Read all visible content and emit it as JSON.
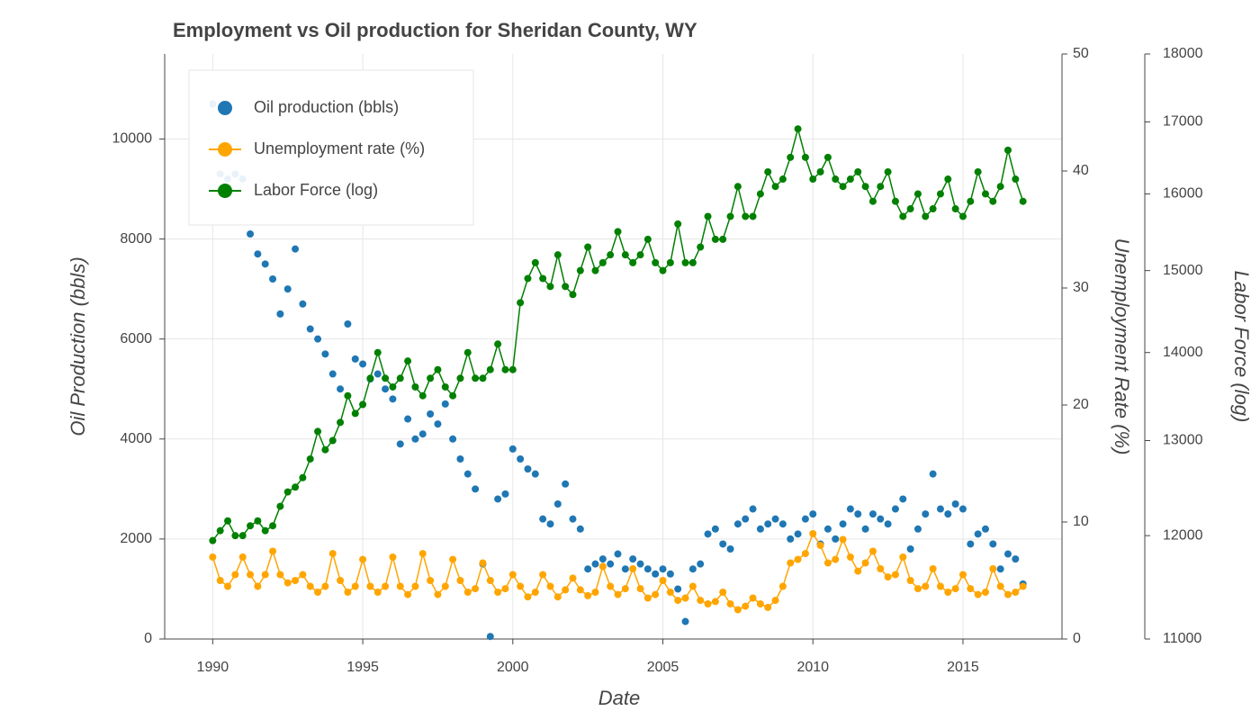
{
  "chart_data": {
    "type": "line",
    "title": "Employment vs Oil production for Sheridan County, WY",
    "x_label": "Date",
    "y_label": "Oil Production (bbls)",
    "y2_label": "Unemployment Rate (%)",
    "y3_label": "Labor Force (log)",
    "xlim": [
      1988.4,
      2018.3
    ],
    "xticks": [
      1990,
      1995,
      2000,
      2005,
      2010,
      2015
    ],
    "ylim": [
      0,
      11700
    ],
    "yticks": [
      0,
      2000,
      4000,
      6000,
      8000,
      10000
    ],
    "y2lim": [
      0,
      50
    ],
    "y2ticks": [
      0,
      10,
      20,
      30,
      40,
      50
    ],
    "y3lim": [
      11000,
      18000
    ],
    "y3ticks": [
      11000,
      12000,
      13000,
      14000,
      15000,
      16000,
      17000,
      18000
    ],
    "y3scale": "log",
    "grid": true,
    "legend": "top-left",
    "x": [
      1990,
      1990.25,
      1990.5,
      1990.75,
      1991,
      1991.25,
      1991.5,
      1991.75,
      1992,
      1992.25,
      1992.5,
      1992.75,
      1993,
      1993.25,
      1993.5,
      1993.75,
      1994,
      1994.25,
      1994.5,
      1994.75,
      1995,
      1995.25,
      1995.5,
      1995.75,
      1996,
      1996.25,
      1996.5,
      1996.75,
      1997,
      1997.25,
      1997.5,
      1997.75,
      1998,
      1998.25,
      1998.5,
      1998.75,
      1999,
      1999.25,
      1999.5,
      1999.75,
      2000,
      2000.25,
      2000.5,
      2000.75,
      2001,
      2001.25,
      2001.5,
      2001.75,
      2002,
      2002.25,
      2002.5,
      2002.75,
      2003,
      2003.25,
      2003.5,
      2003.75,
      2004,
      2004.25,
      2004.5,
      2004.75,
      2005,
      2005.25,
      2005.5,
      2005.75,
      2006,
      2006.25,
      2006.5,
      2006.75,
      2007,
      2007.25,
      2007.5,
      2007.75,
      2008,
      2008.25,
      2008.5,
      2008.75,
      2009,
      2009.25,
      2009.5,
      2009.75,
      2010,
      2010.25,
      2010.5,
      2010.75,
      2011,
      2011.25,
      2011.5,
      2011.75,
      2012,
      2012.25,
      2012.5,
      2012.75,
      2013,
      2013.25,
      2013.5,
      2013.75,
      2014,
      2014.25,
      2014.5,
      2014.75,
      2015,
      2015.25,
      2015.5,
      2015.75,
      2016,
      2016.25,
      2016.5,
      2016.75,
      2017
    ],
    "series": [
      {
        "name": "Oil production (bbls)",
        "color": "#1f77b4",
        "mode": "markers",
        "axis": "y",
        "values": [
          10700,
          9300,
          9200,
          9300,
          9200,
          8100,
          7700,
          7500,
          7200,
          6500,
          7000,
          7800,
          6700,
          6200,
          6000,
          5700,
          5300,
          5000,
          6300,
          5600,
          5500,
          5200,
          5300,
          5000,
          4800,
          3900,
          4400,
          4000,
          4100,
          4500,
          4300,
          4700,
          4000,
          3600,
          3300,
          3000,
          1500,
          50,
          2800,
          2900,
          3800,
          3600,
          3400,
          3300,
          2400,
          2300,
          2700,
          3100,
          2400,
          2200,
          1400,
          1500,
          1600,
          1500,
          1700,
          1400,
          1600,
          1500,
          1400,
          1300,
          1400,
          1300,
          1000,
          350,
          1400,
          1500,
          2100,
          2200,
          1900,
          1800,
          2300,
          2400,
          2600,
          2200,
          2300,
          2400,
          2300,
          2000,
          2100,
          2400,
          2500,
          1900,
          2200,
          2000,
          2300,
          2600,
          2500,
          2200,
          2500,
          2400,
          2300,
          2600,
          2800,
          1800,
          2200,
          2500,
          3300,
          2600,
          2500,
          2700,
          2600,
          1900,
          2100,
          2200,
          1900,
          1400,
          1700,
          1600,
          1100
        ]
      },
      {
        "name": "Unemployment rate (%)",
        "color": "#ffa500",
        "mode": "lines+markers",
        "axis": "y2",
        "values": [
          7.0,
          5.0,
          4.5,
          5.5,
          7.0,
          5.5,
          4.5,
          5.5,
          7.5,
          5.5,
          4.8,
          5.0,
          5.5,
          4.5,
          4.0,
          4.5,
          7.3,
          5.0,
          4.0,
          4.5,
          6.8,
          4.5,
          4.0,
          4.5,
          7.0,
          4.5,
          3.8,
          4.5,
          7.3,
          5.0,
          3.8,
          4.5,
          6.8,
          5.0,
          4.0,
          4.3,
          6.5,
          5.0,
          4.0,
          4.3,
          5.5,
          4.5,
          3.6,
          4.0,
          5.5,
          4.5,
          3.6,
          4.2,
          5.2,
          4.2,
          3.7,
          4.0,
          6.2,
          4.5,
          3.8,
          4.3,
          6.0,
          4.3,
          3.5,
          3.8,
          5.0,
          4.0,
          3.3,
          3.5,
          4.5,
          3.3,
          3.0,
          3.2,
          4.0,
          3.0,
          2.5,
          2.8,
          3.5,
          3.0,
          2.7,
          3.3,
          4.5,
          6.5,
          6.8,
          7.3,
          9.0,
          8.0,
          6.5,
          6.8,
          8.5,
          7.0,
          5.8,
          6.5,
          7.5,
          6.0,
          5.3,
          5.5,
          7.0,
          5.0,
          4.3,
          4.5,
          6.0,
          4.5,
          4.0,
          4.3,
          5.5,
          4.3,
          3.8,
          4.0,
          6.0,
          4.5,
          3.8,
          4.0,
          4.5
        ]
      },
      {
        "name": "Labor Force (log)",
        "color": "#008000",
        "mode": "lines+markers",
        "axis": "y3",
        "values": [
          11950,
          12050,
          12150,
          12000,
          12000,
          12100,
          12150,
          12050,
          12100,
          12300,
          12450,
          12500,
          12600,
          12800,
          13100,
          12900,
          13000,
          13200,
          13500,
          13300,
          13400,
          13700,
          14000,
          13700,
          13600,
          13700,
          13900,
          13600,
          13500,
          13700,
          13800,
          13600,
          13500,
          13700,
          14000,
          13700,
          13700,
          13800,
          14100,
          13800,
          13800,
          14600,
          14900,
          15100,
          14900,
          14800,
          15200,
          14800,
          14700,
          15000,
          15300,
          15000,
          15100,
          15200,
          15500,
          15200,
          15100,
          15200,
          15400,
          15100,
          15000,
          15100,
          15600,
          15100,
          15100,
          15300,
          15700,
          15400,
          15400,
          15700,
          16100,
          15700,
          15700,
          16000,
          16300,
          16100,
          16200,
          16500,
          16900,
          16500,
          16200,
          16300,
          16500,
          16200,
          16100,
          16200,
          16300,
          16100,
          15900,
          16100,
          16300,
          15900,
          15700,
          15800,
          16000,
          15700,
          15800,
          16000,
          16200,
          15800,
          15700,
          15900,
          16300,
          16000,
          15900,
          16100,
          16600,
          16200,
          15900
        ]
      }
    ]
  }
}
